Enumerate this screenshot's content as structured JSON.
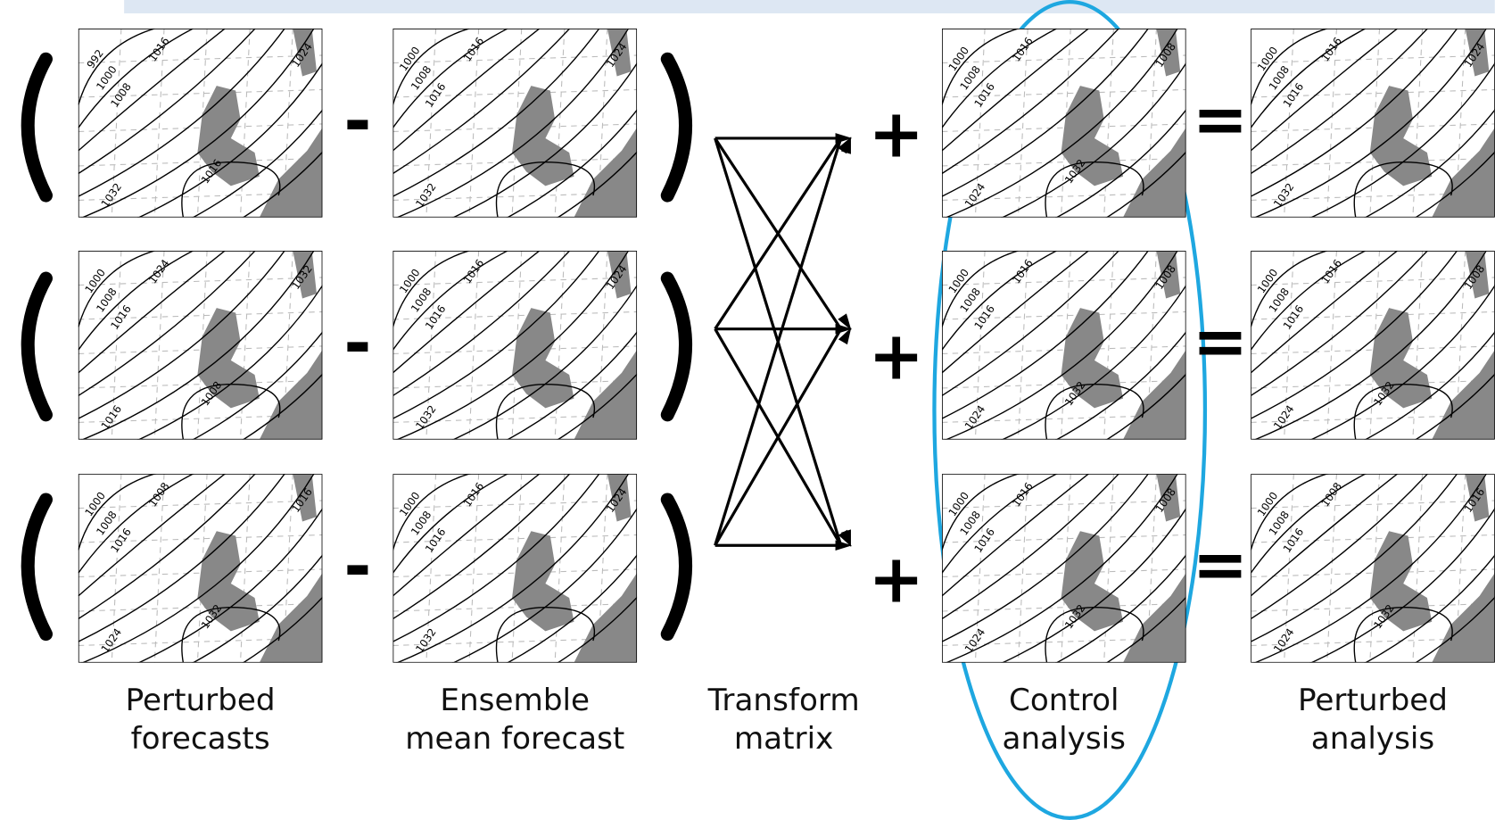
{
  "operators": {
    "minus": "-",
    "plus": "+",
    "equals": "="
  },
  "columns": [
    {
      "lines": [
        "Perturbed",
        "forecasts"
      ]
    },
    {
      "lines": [
        "Ensemble",
        "mean forecast"
      ]
    },
    {
      "lines": [
        "Transform",
        "matrix"
      ]
    },
    {
      "lines": [
        "Control",
        "analysis"
      ]
    },
    {
      "lines": [
        "Perturbed",
        "analysis"
      ]
    }
  ],
  "maps": [
    [
      [
        "992",
        "1000",
        "1008",
        "1016",
        "1024",
        "1032",
        "1016"
      ],
      [
        "1000",
        "1008",
        "1016",
        "1016",
        "1024",
        "1032"
      ],
      [
        "1000",
        "1008",
        "1016",
        "1016",
        "1008",
        "1024",
        "1032"
      ],
      [
        "1000",
        "1008",
        "1016",
        "1016",
        "1024",
        "1032"
      ]
    ],
    [
      [
        "1000",
        "1008",
        "1016",
        "1024",
        "1032",
        "1016",
        "1008"
      ],
      [
        "1000",
        "1008",
        "1016",
        "1016",
        "1024",
        "1032"
      ],
      [
        "1000",
        "1008",
        "1016",
        "1016",
        "1008",
        "1024",
        "1032"
      ],
      [
        "1000",
        "1008",
        "1016",
        "1016",
        "1008",
        "1024",
        "1032"
      ]
    ],
    [
      [
        "1000",
        "1008",
        "1016",
        "1008",
        "1016",
        "1024",
        "1032"
      ],
      [
        "1000",
        "1008",
        "1016",
        "1016",
        "1024",
        "1032"
      ],
      [
        "1000",
        "1008",
        "1016",
        "1016",
        "1008",
        "1024",
        "1032"
      ],
      [
        "1000",
        "1008",
        "1016",
        "1008",
        "1016",
        "1024",
        "1032"
      ]
    ]
  ]
}
